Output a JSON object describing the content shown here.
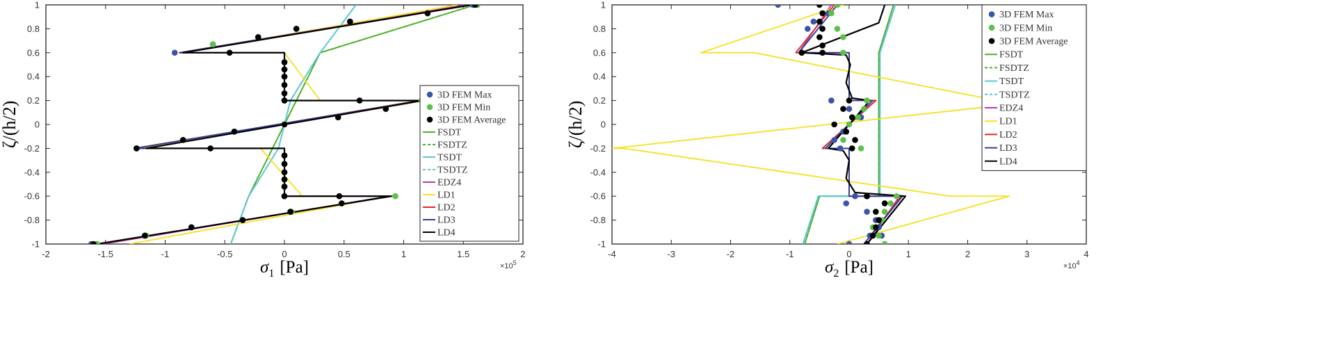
{
  "chart_data": [
    {
      "type": "line",
      "id": "sigma1",
      "xlabel": "σ₁ [Pa]",
      "xlabel_main": "σ",
      "xlabel_sub": "1",
      "xlabel_unit": "[Pa]",
      "ylabel": "ζ/(h/2)",
      "x_exponent": "×10^5",
      "x_exp_base": "×10",
      "x_exp_pow": "5",
      "xlim": [
        -2,
        2
      ],
      "ylim": [
        -1,
        1
      ],
      "xticks": [
        -2,
        -1.5,
        -1,
        -0.5,
        0,
        0.5,
        1,
        1.5,
        2
      ],
      "xtick_labels": [
        "-2",
        "-1.5",
        "-1",
        "-0.5",
        "0",
        "0.5",
        "1",
        "1.5",
        "2"
      ],
      "yticks": [
        -1,
        -0.8,
        -0.6,
        -0.4,
        -0.2,
        0,
        0.2,
        0.4,
        0.6,
        0.8,
        1
      ],
      "ytick_labels": [
        "-1",
        "-0.8",
        "-0.6",
        "-0.4",
        "-0.2",
        "0",
        "0.2",
        "0.4",
        "0.6",
        "0.8",
        "1"
      ],
      "legend_position": "right-lower",
      "series": [
        {
          "name": "FSDT",
          "color": "#4daf2a",
          "dash": "solid",
          "x": [
            -0.45,
            -0.3,
            0.3,
            0.3,
            1.6
          ],
          "y": [
            -1,
            -0.6,
            0.6,
            0.6,
            1
          ]
        },
        {
          "name": "FSDTZ",
          "color": "#4daf2a",
          "dash": "dashed",
          "x": [
            -0.45,
            -0.3,
            0.3,
            0.3,
            1.6
          ],
          "y": [
            -1,
            -0.6,
            0.6,
            0.6,
            1
          ]
        },
        {
          "name": "TSDT",
          "color": "#5cc7d4",
          "dash": "solid",
          "x": [
            -0.45,
            -0.3,
            -0.05,
            0.05,
            0.3,
            0.6
          ],
          "y": [
            -1,
            -0.6,
            -0.2,
            0.2,
            0.6,
            1
          ]
        },
        {
          "name": "TSDTZ",
          "color": "#5cc7d4",
          "dash": "dashed",
          "x": [
            -0.45,
            -0.3,
            -0.05,
            0.05,
            0.3,
            0.6
          ],
          "y": [
            -1,
            -0.6,
            -0.2,
            0.2,
            0.6,
            1
          ]
        },
        {
          "name": "EDZ4",
          "color": "#c0399e",
          "dash": "solid",
          "x": [
            -1.52,
            0.88,
            0,
            0,
            -1.24,
            1.13,
            0,
            0,
            -0.88,
            1.52
          ],
          "y": [
            -1,
            -0.6,
            -0.6,
            -0.2,
            -0.2,
            0.2,
            0.2,
            0.6,
            0.6,
            1
          ]
        },
        {
          "name": "LD1",
          "color": "#f5e22a",
          "dash": "solid",
          "x": [
            -1.3,
            0.88,
            0.15,
            -0.2,
            -1.2,
            1.18,
            0.3,
            0.0,
            -0.85,
            1.45
          ],
          "y": [
            -1,
            -0.6,
            -0.6,
            -0.2,
            -0.2,
            0.2,
            0.2,
            0.6,
            0.6,
            1
          ]
        },
        {
          "name": "LD2",
          "color": "#e3242b",
          "dash": "solid",
          "x": [
            -1.55,
            0.88,
            0,
            0,
            -1.25,
            1.14,
            0,
            0,
            -0.88,
            1.55
          ],
          "y": [
            -1,
            -0.6,
            -0.6,
            -0.2,
            -0.2,
            0.2,
            0.2,
            0.6,
            0.6,
            1
          ]
        },
        {
          "name": "LD3",
          "color": "#2f3f99",
          "dash": "solid",
          "x": [
            -1.56,
            0.88,
            0,
            0,
            -1.26,
            1.15,
            0,
            0,
            -0.88,
            1.56
          ],
          "y": [
            -1,
            -0.6,
            -0.6,
            -0.2,
            -0.2,
            0.2,
            0.2,
            0.6,
            0.6,
            1
          ]
        },
        {
          "name": "LD4",
          "color": "#000000",
          "dash": "solid",
          "x": [
            -1.57,
            0.9,
            0,
            0,
            -1.16,
            1.16,
            0,
            0,
            -0.85,
            1.57
          ],
          "y": [
            -1,
            -0.6,
            -0.6,
            -0.2,
            -0.2,
            0.2,
            0.2,
            0.6,
            0.6,
            1
          ]
        }
      ],
      "scatter": [
        {
          "name": "3D FEM Max",
          "color": "#3b55a6",
          "x": [
            -1.62,
            -1.17,
            -0.78,
            -0.35,
            0.05,
            0.48,
            0,
            0,
            0,
            0,
            0,
            0,
            -1.24,
            -0.85,
            -0.42,
            0,
            0.45,
            0.85,
            0,
            0,
            0,
            0,
            0,
            0,
            -0.92,
            -0.6,
            -0.22,
            0.1,
            0.55,
            1.2,
            1.58
          ],
          "y": [
            -1,
            -0.93,
            -0.86,
            -0.8,
            -0.73,
            -0.66,
            -0.6,
            -0.52,
            -0.46,
            -0.4,
            -0.33,
            -0.26,
            -0.2,
            -0.13,
            -0.06,
            0,
            0.06,
            0.13,
            0.2,
            0.26,
            0.33,
            0.4,
            0.46,
            0.52,
            0.6,
            0.67,
            0.73,
            0.8,
            0.86,
            0.93,
            1
          ]
        },
        {
          "name": "3D FEM Min",
          "color": "#5cc04a",
          "x": [
            -1.57,
            -1.16,
            -0.78,
            -0.35,
            0.06,
            0.48,
            0.93,
            0,
            0,
            0,
            0,
            0,
            0,
            -1.24,
            -0.85,
            -0.42,
            0,
            0.45,
            0.85,
            1.15,
            0,
            0,
            0,
            0,
            0,
            0,
            -0.6,
            -0.22,
            0.1,
            0.55,
            1.2,
            1.62
          ],
          "y": [
            -1,
            -0.93,
            -0.86,
            -0.8,
            -0.73,
            -0.66,
            -0.6,
            -0.6,
            -0.52,
            -0.46,
            -0.4,
            -0.33,
            -0.26,
            -0.2,
            -0.13,
            -0.06,
            0,
            0.06,
            0.13,
            0.2,
            0.2,
            0.26,
            0.33,
            0.4,
            0.46,
            0.52,
            0.67,
            0.73,
            0.8,
            0.86,
            0.93,
            1
          ]
        },
        {
          "name": "3D FEM Average",
          "color": "#000000",
          "x": [
            -1.6,
            -1.17,
            -0.78,
            -0.35,
            0.05,
            0.48,
            0.46,
            0,
            0,
            0,
            0,
            0,
            0,
            -1.24,
            -0.62,
            -0.85,
            -0.42,
            0,
            0.45,
            0.85,
            0.63,
            0,
            0,
            0,
            0,
            0,
            0,
            -0.46,
            -0.22,
            0.1,
            0.55,
            1.2,
            1.6
          ],
          "y": [
            -1,
            -0.93,
            -0.86,
            -0.8,
            -0.73,
            -0.66,
            -0.6,
            -0.6,
            -0.52,
            -0.46,
            -0.4,
            -0.33,
            -0.26,
            -0.2,
            -0.2,
            -0.13,
            -0.06,
            0,
            0.06,
            0.13,
            0.2,
            0.2,
            0.26,
            0.33,
            0.4,
            0.46,
            0.52,
            0.6,
            0.73,
            0.8,
            0.86,
            0.93,
            1
          ]
        }
      ]
    },
    {
      "type": "line",
      "id": "sigma2",
      "xlabel": "σ₂ [Pa]",
      "xlabel_main": "σ",
      "xlabel_sub": "2",
      "xlabel_unit": "[Pa]",
      "ylabel": "ζ/(h/2)",
      "x_exponent": "×10^4",
      "x_exp_base": "×10",
      "x_exp_pow": "4",
      "xlim": [
        -4,
        4
      ],
      "ylim": [
        -1,
        1
      ],
      "xticks": [
        -4,
        -3,
        -2,
        -1,
        0,
        1,
        2,
        3,
        4
      ],
      "xtick_labels": [
        "-4",
        "-3",
        "-2",
        "-1",
        "0",
        "1",
        "2",
        "3",
        "4"
      ],
      "yticks": [
        -1,
        -0.8,
        -0.6,
        -0.4,
        -0.2,
        0,
        0.2,
        0.4,
        0.6,
        0.8,
        1
      ],
      "ytick_labels": [
        "-1",
        "-0.8",
        "-0.6",
        "-0.4",
        "-0.2",
        "0",
        "0.2",
        "0.4",
        "0.6",
        "0.8",
        "1"
      ],
      "legend_position": "top-right",
      "series": [
        {
          "name": "FSDT",
          "color": "#4daf2a",
          "dash": "solid",
          "x": [
            -0.75,
            -0.5,
            0.5,
            0.5,
            0.75
          ],
          "y": [
            -1,
            -0.6,
            -0.6,
            0.6,
            1
          ]
        },
        {
          "name": "FSDTZ",
          "color": "#4daf2a",
          "dash": "dashed",
          "x": [
            -0.75,
            -0.5,
            0.5,
            0.5,
            0.75
          ],
          "y": [
            -1,
            -0.6,
            -0.6,
            0.6,
            1
          ]
        },
        {
          "name": "TSDT",
          "color": "#5cc7d4",
          "dash": "solid",
          "x": [
            -0.78,
            -0.52,
            0.52,
            0.52,
            0.78
          ],
          "y": [
            -1,
            -0.6,
            -0.6,
            0.6,
            1
          ]
        },
        {
          "name": "TSDTZ",
          "color": "#5cc7d4",
          "dash": "dashed",
          "x": [
            -0.78,
            -0.52,
            0.52,
            0.52,
            0.78
          ],
          "y": [
            -1,
            -0.6,
            -0.6,
            0.6,
            1
          ]
        },
        {
          "name": "EDZ4",
          "color": "#c0399e",
          "dash": "solid",
          "x": [
            0.3,
            0.85,
            0,
            0,
            -0.45,
            0.45,
            0,
            0,
            -0.85,
            -0.3
          ],
          "y": [
            -1,
            -0.6,
            -0.6,
            -0.2,
            -0.2,
            0.2,
            0.2,
            0.6,
            0.6,
            1
          ]
        },
        {
          "name": "LD1",
          "color": "#f5e22a",
          "dash": "solid",
          "x": [
            -0.2,
            2.7,
            1.7,
            -3.8,
            -4.0,
            3.3,
            2.5,
            -1.6,
            -2.5,
            -0.1
          ],
          "y": [
            -1,
            -0.6,
            -0.6,
            -0.2,
            -0.2,
            0.2,
            0.2,
            0.6,
            0.6,
            1
          ]
        },
        {
          "name": "LD2",
          "color": "#e3242b",
          "dash": "solid",
          "x": [
            0.25,
            0.88,
            0,
            0,
            -0.45,
            0.45,
            0,
            0,
            -0.9,
            -0.25
          ],
          "y": [
            -1,
            -0.6,
            -0.6,
            -0.2,
            -0.2,
            0.2,
            0.2,
            0.6,
            0.6,
            1
          ]
        },
        {
          "name": "LD3",
          "color": "#2f3f99",
          "dash": "solid",
          "x": [
            0.25,
            0.9,
            0,
            0,
            -0.4,
            0.4,
            0,
            0,
            -0.85,
            -0.2
          ],
          "y": [
            -1,
            -0.6,
            -0.6,
            -0.2,
            -0.2,
            0.2,
            0.2,
            0.6,
            0.6,
            1
          ]
        },
        {
          "name": "LD4",
          "color": "#000000",
          "dash": "solid",
          "x": [
            0.3,
            0.95,
            0.1,
            -0.05,
            0.0,
            -0.1,
            -0.35,
            0.35,
            0.05,
            -0.05,
            0.02,
            -0.05,
            -0.8,
            0.5,
            0.6
          ],
          "y": [
            -1,
            -0.6,
            -0.57,
            -0.45,
            -0.3,
            -0.22,
            -0.2,
            0.2,
            0.22,
            0.35,
            0.5,
            0.58,
            0.6,
            0.85,
            1
          ]
        }
      ],
      "scatter": [
        {
          "name": "3D FEM Max",
          "color": "#3b55a6",
          "x": [
            -1.2,
            -0.35,
            -0.6,
            -0.7,
            -0.8,
            -0.3,
            0.0,
            0.2,
            -0.1,
            -0.25,
            -0.15,
            0.1,
            -0.05,
            0.3,
            0.45,
            0.5,
            0.55,
            0.35,
            0.0
          ],
          "y": [
            1,
            0.93,
            0.86,
            0.8,
            0.6,
            0.2,
            0.13,
            0.06,
            -0.06,
            -0.13,
            -0.2,
            -0.6,
            -0.66,
            -0.73,
            -0.8,
            -0.86,
            -0.93,
            -0.93,
            -1
          ]
        },
        {
          "name": "3D FEM Min",
          "color": "#5cc04a",
          "x": [
            -0.2,
            -0.3,
            -0.2,
            -0.1,
            -0.1,
            0.3,
            0.25,
            0.15,
            0.0,
            -0.1,
            0.2,
            0.8,
            0.7,
            0.6,
            0.55,
            0.4,
            0.5,
            0.6
          ],
          "y": [
            1,
            0.93,
            0.8,
            0.73,
            0.6,
            0.2,
            0.13,
            0.06,
            0.0,
            -0.13,
            -0.2,
            -0.6,
            -0.66,
            -0.73,
            -0.8,
            -0.86,
            -0.93,
            -1
          ]
        },
        {
          "name": "3D FEM Average",
          "color": "#000000",
          "x": [
            -0.5,
            -0.45,
            -0.5,
            -0.45,
            -0.5,
            -0.45,
            -0.8,
            -0.45,
            0.0,
            -0.1,
            0.05,
            -0.25,
            -0.05,
            0.1,
            0.05,
            0.3,
            0.3,
            0.6,
            0.45,
            0.5,
            0.45,
            0.4,
            0.3
          ],
          "y": [
            1,
            0.93,
            0.86,
            0.8,
            0.73,
            0.66,
            0.6,
            0.6,
            0.2,
            0.13,
            0.06,
            0.0,
            -0.06,
            -0.13,
            -0.2,
            -0.6,
            -0.6,
            -0.66,
            -0.73,
            -0.8,
            -0.86,
            -0.93,
            -1
          ]
        }
      ]
    }
  ]
}
